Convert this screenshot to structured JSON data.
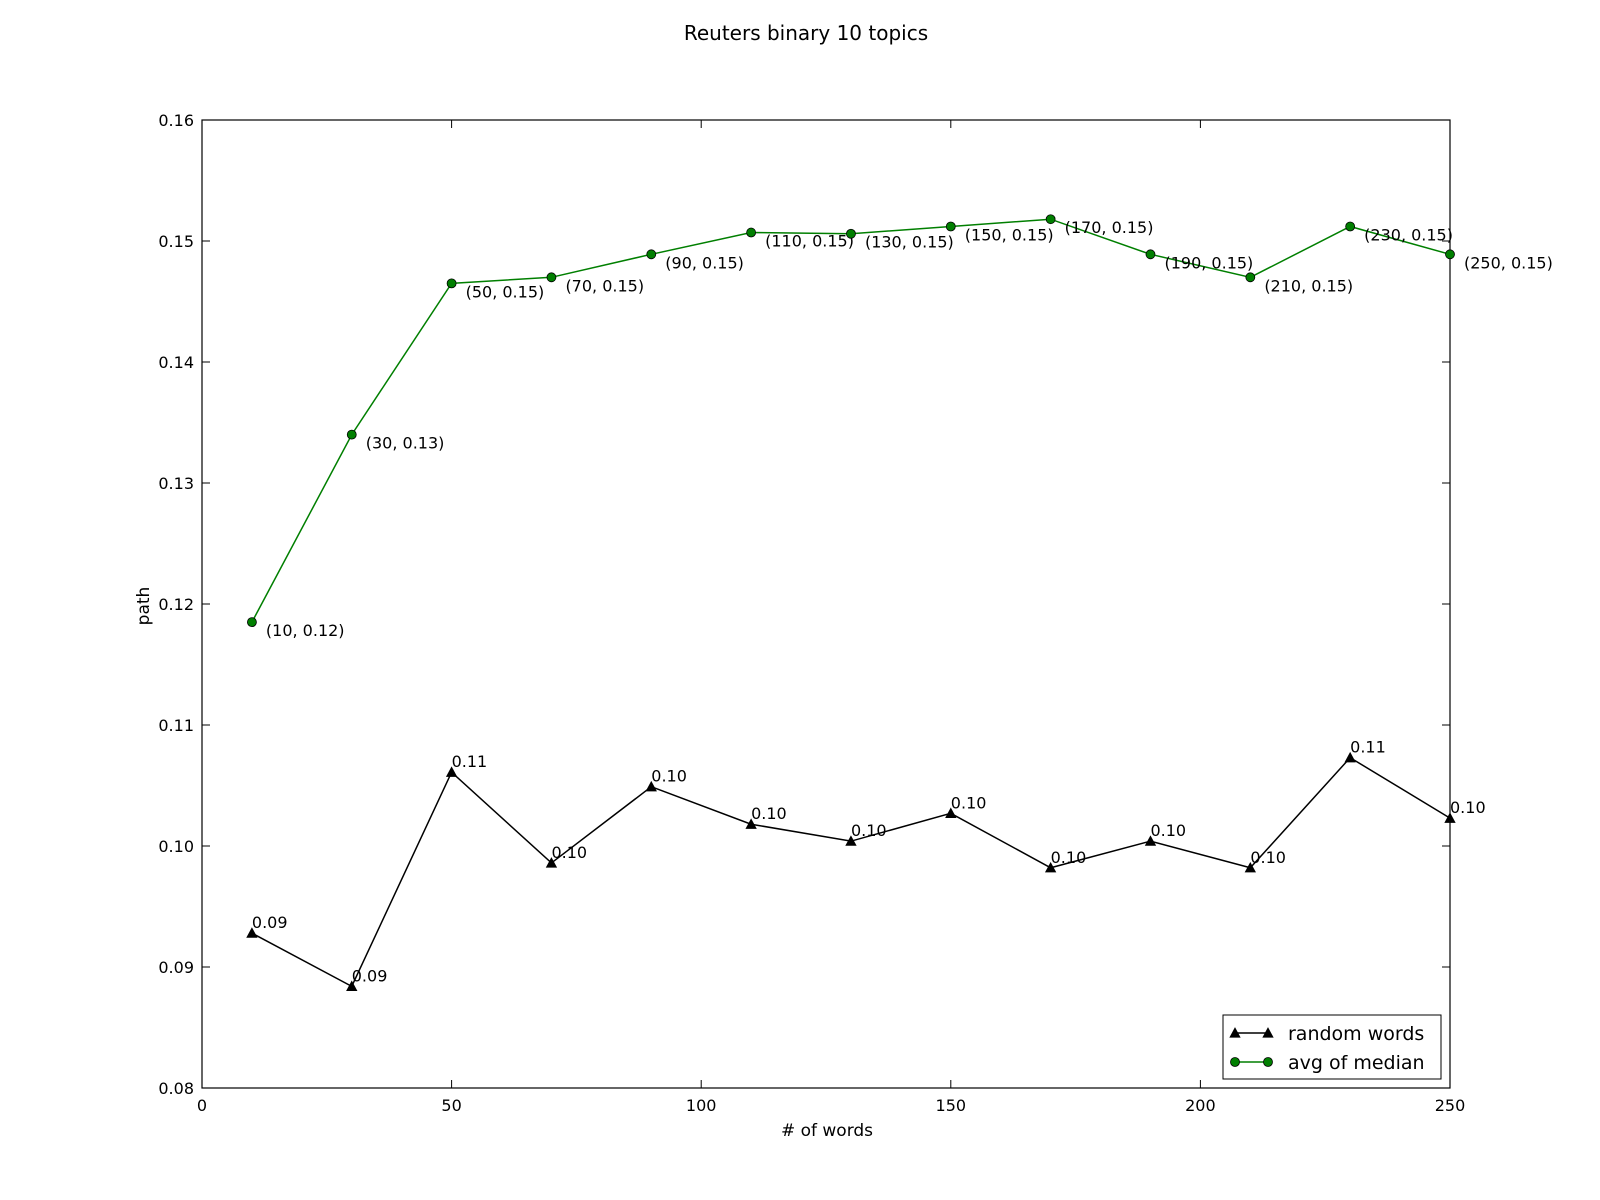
{
  "chart_data": {
    "type": "line",
    "title": "Reuters binary  10 topics",
    "xlabel": "# of words",
    "ylabel": "path",
    "xlim": [
      0,
      250
    ],
    "ylim": [
      0.08,
      0.16
    ],
    "xticks": [
      0,
      50,
      100,
      150,
      200,
      250
    ],
    "xtick_labels": [
      "0",
      "50",
      "100",
      "150",
      "200",
      "250"
    ],
    "yticks": [
      0.08,
      0.09,
      0.1,
      0.11,
      0.12,
      0.13,
      0.14,
      0.15,
      0.16
    ],
    "ytick_labels": [
      "0.08",
      "0.09",
      "0.10",
      "0.11",
      "0.12",
      "0.13",
      "0.14",
      "0.15",
      "0.16"
    ],
    "grid": false,
    "legend_position": "bottom-right",
    "x": [
      10,
      30,
      50,
      70,
      90,
      110,
      130,
      150,
      170,
      190,
      210,
      230,
      250
    ],
    "series": [
      {
        "name": "random words",
        "color": "#000000",
        "marker": "triangle",
        "values": [
          0.0928,
          0.0884,
          0.1061,
          0.0986,
          0.1049,
          0.1018,
          0.1004,
          0.1027,
          0.0982,
          0.1004,
          0.0982,
          0.1073,
          0.1023
        ],
        "labels": [
          "0.09",
          "0.09",
          "0.11",
          "0.10",
          "0.10",
          "0.10",
          "0.10",
          "0.10",
          "0.10",
          "0.10",
          "0.10",
          "0.11",
          "0.10"
        ]
      },
      {
        "name": "avg of median",
        "color": "#007f00",
        "marker": "circle",
        "values": [
          0.1185,
          0.134,
          0.1465,
          0.147,
          0.1489,
          0.1507,
          0.1506,
          0.1512,
          0.1518,
          0.1489,
          0.147,
          0.1512,
          0.1489
        ],
        "labels": [
          "(10, 0.12)",
          "(30, 0.13)",
          "(50, 0.15)",
          "(70, 0.15)",
          "(90, 0.15)",
          "(110, 0.15)",
          "(130, 0.15)",
          "(150, 0.15)",
          "(170, 0.15)",
          "(190, 0.15)",
          "(210, 0.15)",
          "(230, 0.15)",
          "(250, 0.15)"
        ]
      }
    ]
  }
}
